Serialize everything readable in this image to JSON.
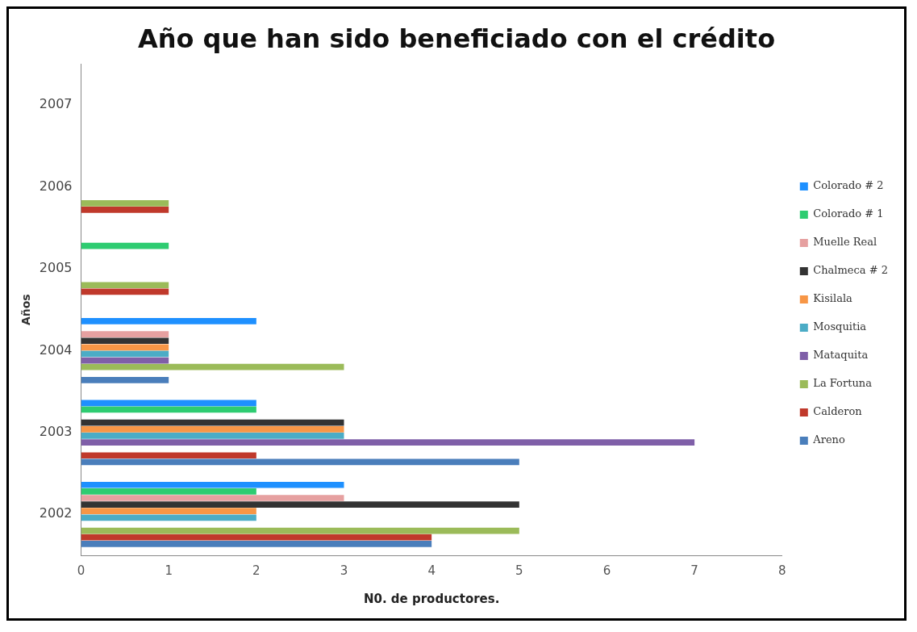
{
  "chart_data": {
    "type": "bar",
    "orientation": "horizontal",
    "title": "Año que han sido beneficiado con el crédito",
    "xlabel": "N0. de productores.",
    "ylabel": "Años",
    "categories": [
      "2007",
      "2006",
      "2005",
      "2004",
      "2003",
      "2002"
    ],
    "series": [
      {
        "name": "Areno",
        "color": "#4a7ebb",
        "values": [
          0,
          0,
          0,
          1,
          5,
          4
        ]
      },
      {
        "name": "Calderon",
        "color": "#c0392b",
        "values": [
          0,
          1,
          1,
          0,
          2,
          4
        ]
      },
      {
        "name": "La Fortuna",
        "color": "#9bbb59",
        "values": [
          0,
          1,
          1,
          3,
          0,
          5
        ]
      },
      {
        "name": "Mataquita",
        "color": "#7f5fa8",
        "values": [
          0,
          0,
          0,
          1,
          7,
          0
        ]
      },
      {
        "name": "Mosquitia",
        "color": "#4bacc6",
        "values": [
          0,
          0,
          0,
          1,
          3,
          2
        ]
      },
      {
        "name": "Kisilala",
        "color": "#f79646",
        "values": [
          0,
          0,
          0,
          1,
          3,
          2
        ]
      },
      {
        "name": "Chalmeca # 2",
        "color": "#333333",
        "values": [
          0,
          0,
          0,
          1,
          3,
          5
        ]
      },
      {
        "name": "Muelle Real",
        "color": "#e6a0a0",
        "values": [
          0,
          0,
          0,
          1,
          0,
          3
        ]
      },
      {
        "name": "Colorado # 1",
        "color": "#2ecc71",
        "values": [
          0,
          0,
          1,
          0,
          2,
          2
        ]
      },
      {
        "name": "Colorado # 2",
        "color": "#1e90ff",
        "values": [
          0,
          0,
          0,
          2,
          2,
          3
        ]
      }
    ],
    "xlim": [
      0,
      8
    ],
    "xticks": [
      0,
      1,
      2,
      3,
      4,
      5,
      6,
      7,
      8
    ],
    "grid": false,
    "legend": "right"
  }
}
